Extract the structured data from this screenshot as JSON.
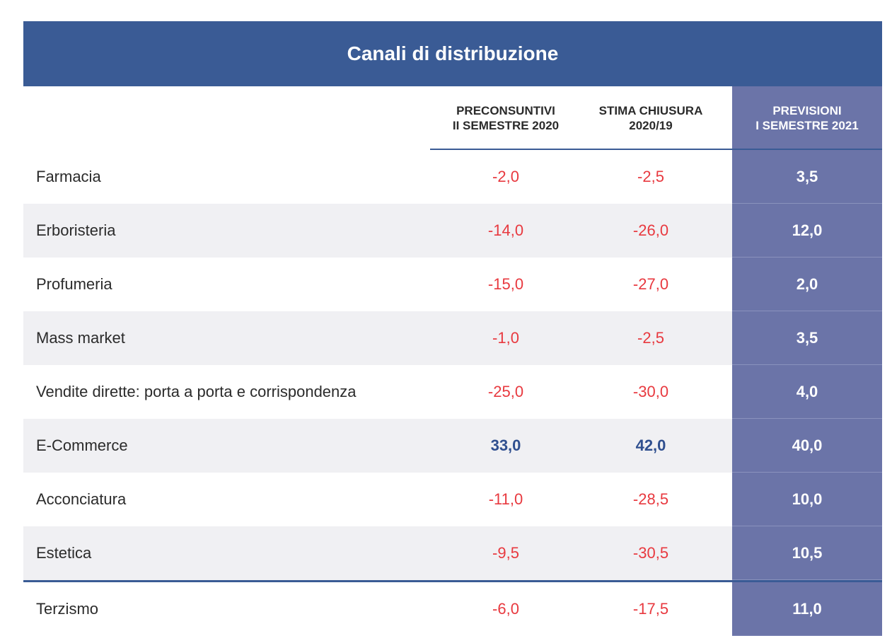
{
  "chart_data": {
    "type": "table",
    "title": "Canali di distribuzione",
    "columns": [
      "",
      "PRECONSUNTIVI\nII SEMESTRE 2020",
      "STIMA CHIUSURA\n2020/19",
      "PREVISIONI\nI SEMESTRE 2021"
    ],
    "rows": [
      {
        "label": "Farmacia",
        "values": [
          "-2,0",
          "-2,5",
          "3,5"
        ]
      },
      {
        "label": "Erboristeria",
        "values": [
          "-14,0",
          "-26,0",
          "12,0"
        ]
      },
      {
        "label": "Profumeria",
        "values": [
          "-15,0",
          "-27,0",
          "2,0"
        ]
      },
      {
        "label": "Mass market",
        "values": [
          "-1,0",
          "-2,5",
          "3,5"
        ]
      },
      {
        "label": "Vendite dirette: porta a porta e corrispondenza",
        "values": [
          "-25,0",
          "-30,0",
          "4,0"
        ]
      },
      {
        "label": "E-Commerce",
        "values": [
          "33,0",
          "42,0",
          "40,0"
        ]
      },
      {
        "label": "Acconciatura",
        "values": [
          "-11,0",
          "-28,5",
          "10,0"
        ]
      },
      {
        "label": "Estetica",
        "values": [
          "-9,5",
          "-30,5",
          "10,5"
        ]
      }
    ],
    "total_row": {
      "label": "Terzismo",
      "values": [
        "-6,0",
        "-17,5",
        "11,0"
      ]
    }
  },
  "colors": {
    "header_blue": "#3a5b95",
    "forecast_column": "#6b74a8",
    "negative": "#e8393f",
    "positive": "#2f4f8f",
    "row_shade": "#f0f0f3"
  }
}
